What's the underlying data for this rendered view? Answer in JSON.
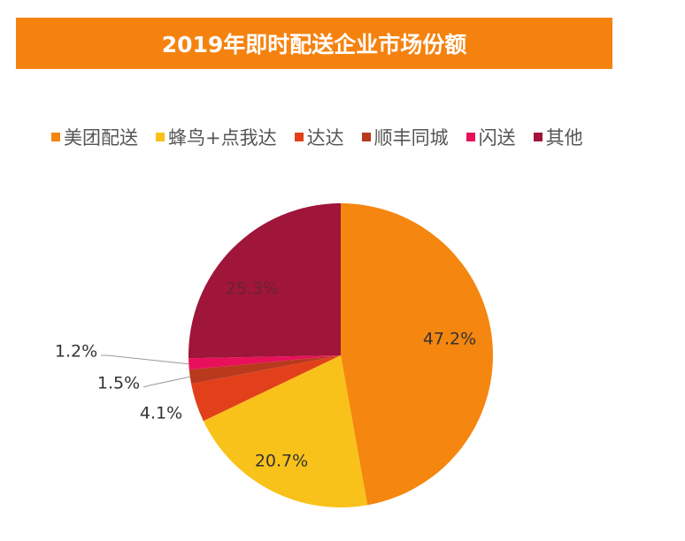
{
  "chart_data": {
    "type": "pie",
    "title": "2019年即时配送企业市场份额",
    "legend_position": "top",
    "start": "12 o'clock, clockwise",
    "slices": [
      {
        "name": "美团配送",
        "value": 47.2,
        "label": "47.2%",
        "color": "#F5860F"
      },
      {
        "name": "蜂鸟+点我达",
        "value": 20.7,
        "label": "20.7%",
        "color": "#F9C21A"
      },
      {
        "name": "达达",
        "value": 4.1,
        "label": "4.1%",
        "color": "#E2401B"
      },
      {
        "name": "顺丰同城",
        "value": 1.5,
        "label": "1.5%",
        "color": "#B8391E"
      },
      {
        "name": "闪送",
        "value": 1.2,
        "label": "1.2%",
        "color": "#E8105A"
      },
      {
        "name": "其他",
        "value": 25.3,
        "label": "25.3%",
        "color": "#A0153A"
      }
    ]
  }
}
